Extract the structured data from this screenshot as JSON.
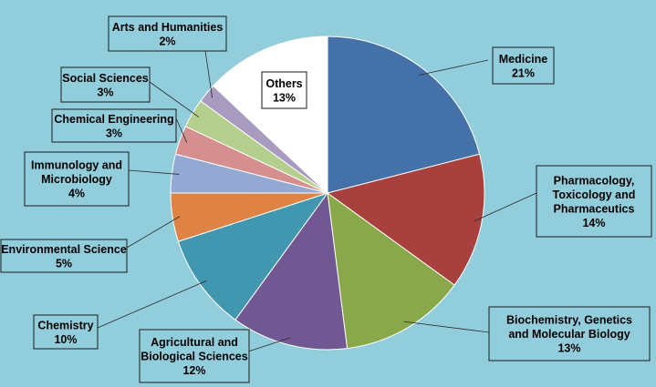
{
  "chart_data": {
    "type": "pie",
    "title": "",
    "legend": "none",
    "slices": [
      {
        "label": "Medicine",
        "value": 21,
        "pct_label": "21%",
        "color": "#4472A8"
      },
      {
        "label": "Pharmacology, Toxicology and Pharmaceutics",
        "value": 14,
        "pct_label": "14%",
        "color": "#A8403E"
      },
      {
        "label": "Biochemistry, Genetics and Molecular Biology",
        "value": 13,
        "pct_label": "13%",
        "color": "#88A84A"
      },
      {
        "label": "Agricultural and Biological Sciences",
        "value": 12,
        "pct_label": "12%",
        "color": "#725892"
      },
      {
        "label": "Chemistry",
        "value": 10,
        "pct_label": "10%",
        "color": "#4097AF"
      },
      {
        "label": "Environmental Science",
        "value": 5,
        "pct_label": "5%",
        "color": "#DE8343"
      },
      {
        "label": "Immunology and Microbiology",
        "value": 4,
        "pct_label": "4%",
        "color": "#93A9D3"
      },
      {
        "label": "Chemical Engineering",
        "value": 3,
        "pct_label": "3%",
        "color": "#D48F8E"
      },
      {
        "label": "Social Sciences",
        "value": 3,
        "pct_label": "3%",
        "color": "#B4CE8E"
      },
      {
        "label": "Arts and Humanities",
        "value": 2,
        "pct_label": "2%",
        "color": "#A89BBF"
      },
      {
        "label": "Others",
        "value": 13,
        "pct_label": "13%",
        "color": "#FFFFFF"
      }
    ]
  },
  "colors": {
    "background": "#92CDDC",
    "border": "#1a1a1a"
  }
}
